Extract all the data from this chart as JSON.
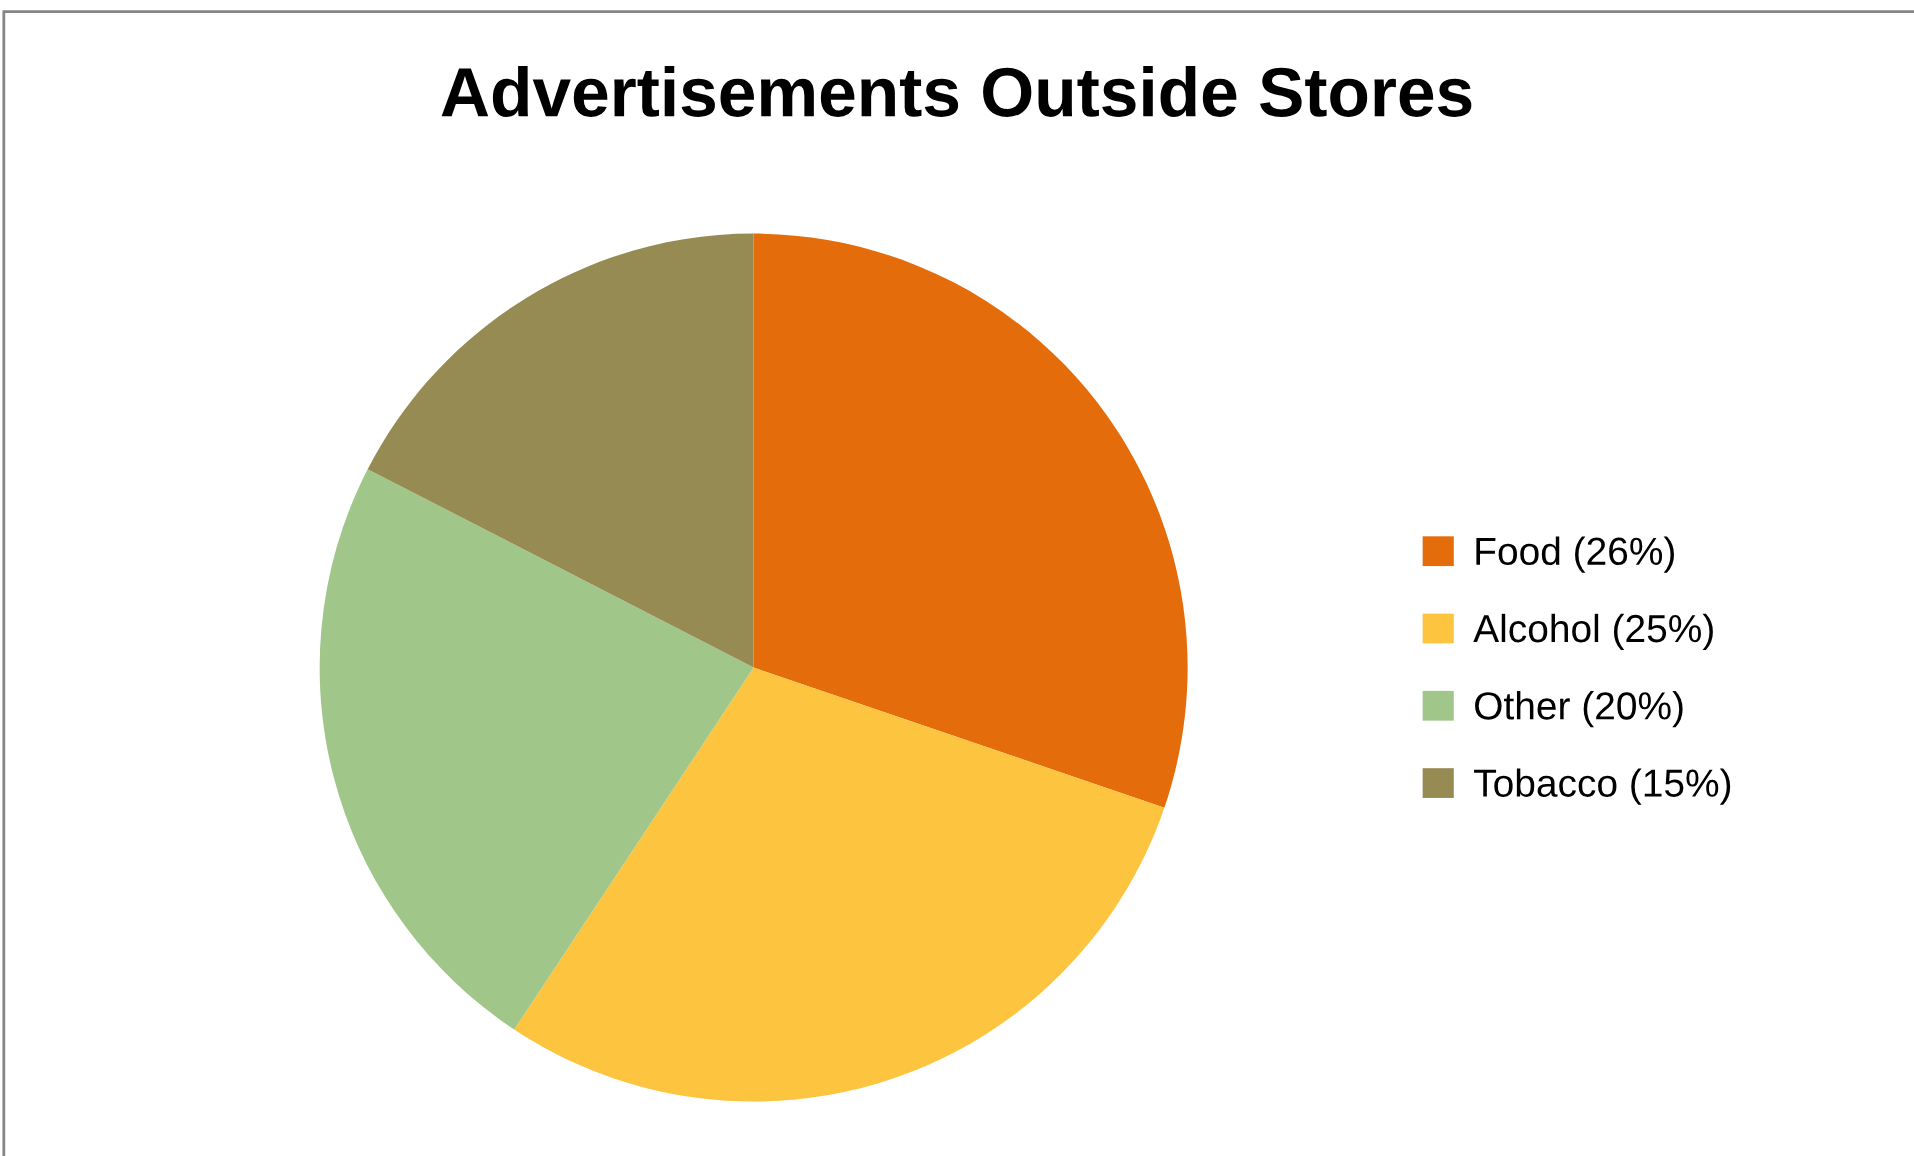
{
  "chart_data": {
    "type": "pie",
    "title": "Advertisements Outside Stores",
    "categories": [
      "Food (26%)",
      "Alcohol (25%)",
      "Other (20%)",
      "Tobacco (15%)"
    ],
    "values": [
      26,
      25,
      20,
      15
    ],
    "colors": [
      "#e46c0a",
      "#fdc440",
      "#a0c68a",
      "#968b52"
    ],
    "legend": "right"
  }
}
